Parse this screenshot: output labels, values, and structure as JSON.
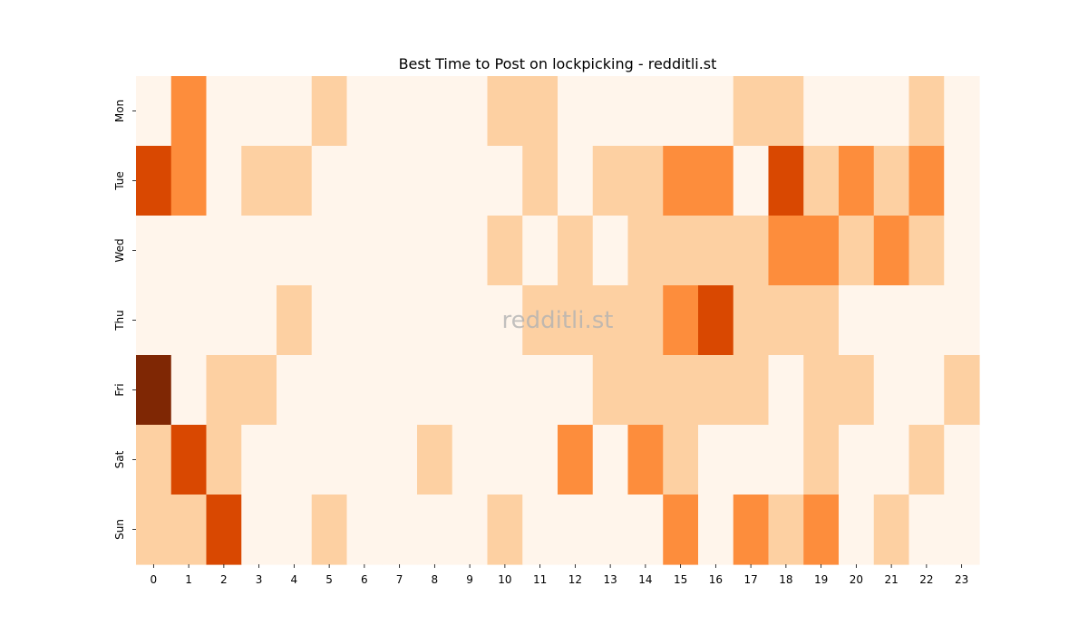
{
  "chart_data": {
    "type": "heatmap",
    "title": "Best Time to Post on lockpicking - redditli.st",
    "watermark": "redditli.st",
    "x_categories": [
      "0",
      "1",
      "2",
      "3",
      "4",
      "5",
      "6",
      "7",
      "8",
      "9",
      "10",
      "11",
      "12",
      "13",
      "14",
      "15",
      "16",
      "17",
      "18",
      "19",
      "20",
      "21",
      "22",
      "23"
    ],
    "y_categories": [
      "Mon",
      "Tue",
      "Wed",
      "Thu",
      "Fri",
      "Sat",
      "Sun"
    ],
    "value_scale": "relative level 0–4 (0 = lowest, 4 = highest)",
    "values": [
      [
        0,
        2,
        0,
        0,
        0,
        1,
        0,
        0,
        0,
        0,
        1,
        1,
        0,
        0,
        0,
        0,
        0,
        1,
        1,
        0,
        0,
        0,
        1,
        0
      ],
      [
        3,
        2,
        0,
        1,
        1,
        0,
        0,
        0,
        0,
        0,
        0,
        1,
        0,
        1,
        1,
        2,
        2,
        0,
        3,
        1,
        2,
        1,
        2,
        0
      ],
      [
        0,
        0,
        0,
        0,
        0,
        0,
        0,
        0,
        0,
        0,
        1,
        0,
        1,
        0,
        1,
        1,
        1,
        1,
        2,
        2,
        1,
        2,
        1,
        0
      ],
      [
        0,
        0,
        0,
        0,
        1,
        0,
        0,
        0,
        0,
        0,
        0,
        1,
        1,
        1,
        1,
        2,
        3,
        1,
        1,
        1,
        0,
        0,
        0,
        0
      ],
      [
        4,
        0,
        1,
        1,
        0,
        0,
        0,
        0,
        0,
        0,
        0,
        0,
        0,
        1,
        1,
        1,
        1,
        1,
        0,
        1,
        1,
        0,
        0,
        1
      ],
      [
        1,
        3,
        1,
        0,
        0,
        0,
        0,
        0,
        1,
        0,
        0,
        0,
        2,
        0,
        2,
        1,
        0,
        0,
        0,
        1,
        0,
        0,
        1,
        0
      ],
      [
        1,
        1,
        3,
        0,
        0,
        1,
        0,
        0,
        0,
        0,
        1,
        0,
        0,
        0,
        0,
        2,
        0,
        2,
        1,
        2,
        0,
        1,
        0,
        0
      ]
    ],
    "color_levels": [
      "#fff5eb",
      "#fdd0a2",
      "#fd8d3c",
      "#d94801",
      "#7f2704"
    ],
    "colormap": "Oranges"
  }
}
